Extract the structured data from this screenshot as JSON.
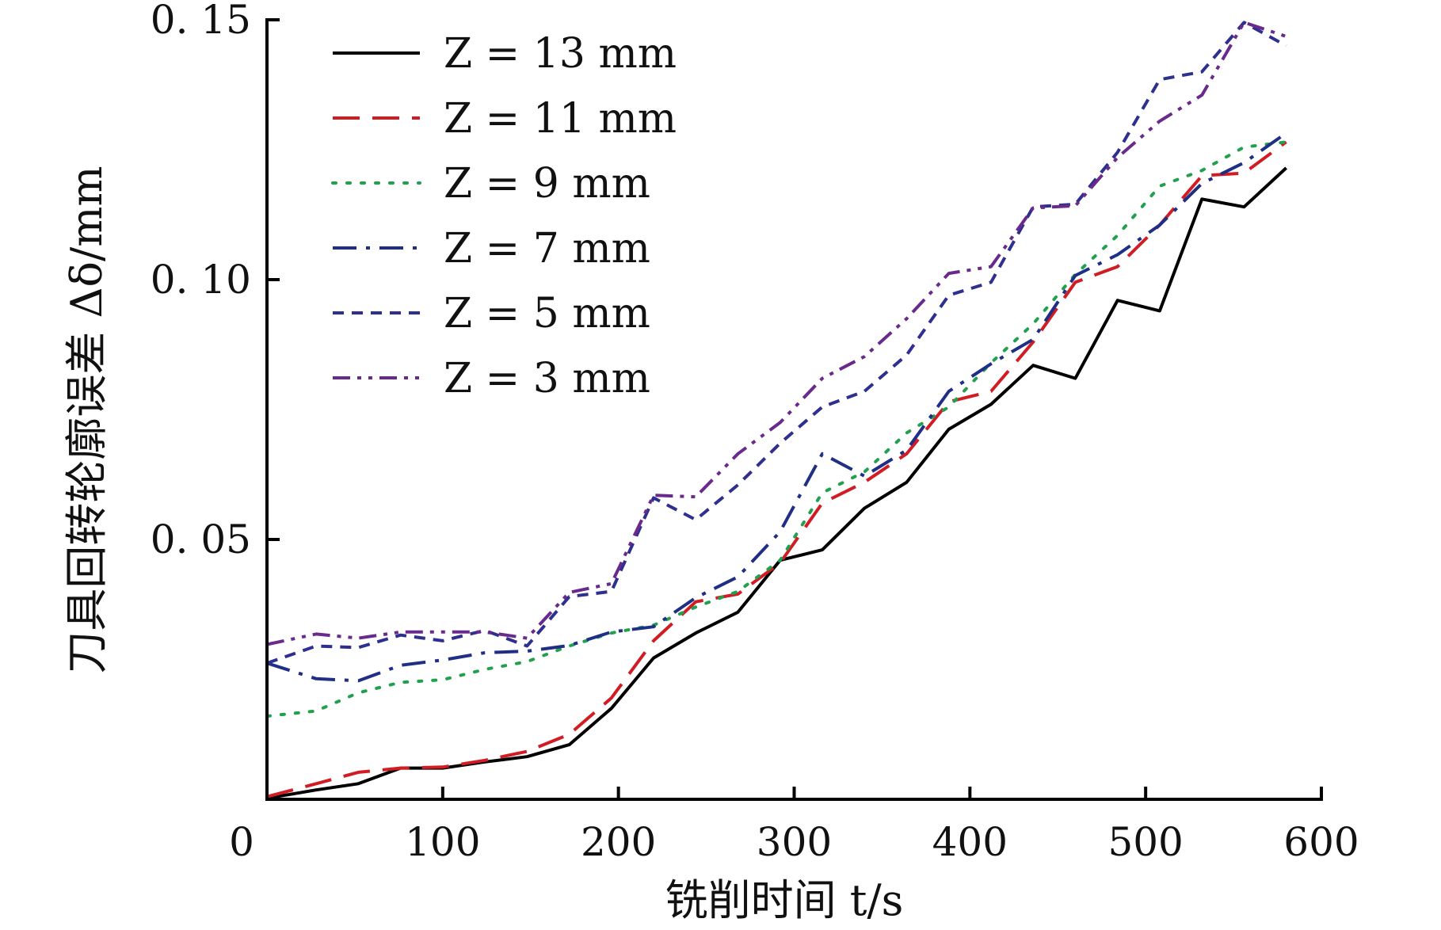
{
  "chart_data": {
    "type": "line",
    "title": "",
    "xlabel": "铣削时间 t/s",
    "ylabel": "刀具回转轮廓误差 Δδ/mm",
    "xlim": [
      0,
      600
    ],
    "ylim": [
      0,
      0.15
    ],
    "x_ticks": [
      0,
      100,
      200,
      300,
      400,
      500,
      600
    ],
    "x_tick_labels": [
      "0",
      "100",
      "200",
      "300",
      "400",
      "500",
      "600"
    ],
    "y_ticks": [
      0.05,
      0.1,
      0.15
    ],
    "y_tick_labels": [
      "0. 05",
      "0. 10",
      "0. 15"
    ],
    "grid": false,
    "legend_position": "top-left",
    "series": [
      {
        "name": "Z = 13 mm",
        "color": "#000000",
        "dash": "solid",
        "points": [
          [
            0,
            0.0002
          ],
          [
            28,
            0.0018
          ],
          [
            52,
            0.003
          ],
          [
            76,
            0.006
          ],
          [
            100,
            0.006
          ],
          [
            124,
            0.0072
          ],
          [
            148,
            0.0082
          ],
          [
            172,
            0.0105
          ],
          [
            196,
            0.0175
          ],
          [
            220,
            0.0272
          ],
          [
            244,
            0.032
          ],
          [
            268,
            0.036
          ],
          [
            292,
            0.046
          ],
          [
            316,
            0.048
          ],
          [
            340,
            0.056
          ],
          [
            364,
            0.061
          ],
          [
            388,
            0.0712
          ],
          [
            412,
            0.076
          ],
          [
            436,
            0.0835
          ],
          [
            460,
            0.081
          ],
          [
            484,
            0.096
          ],
          [
            508,
            0.094
          ],
          [
            532,
            0.1155
          ],
          [
            556,
            0.114
          ],
          [
            580,
            0.1215
          ]
        ]
      },
      {
        "name": "Z = 11 mm",
        "color": "#d21c24",
        "dash": "dashed",
        "points": [
          [
            0,
            0.0005
          ],
          [
            28,
            0.003
          ],
          [
            52,
            0.0052
          ],
          [
            76,
            0.006
          ],
          [
            100,
            0.0062
          ],
          [
            124,
            0.0075
          ],
          [
            148,
            0.0092
          ],
          [
            172,
            0.0125
          ],
          [
            196,
            0.0195
          ],
          [
            220,
            0.0305
          ],
          [
            244,
            0.038
          ],
          [
            268,
            0.0395
          ],
          [
            292,
            0.0455
          ],
          [
            316,
            0.057
          ],
          [
            340,
            0.061
          ],
          [
            364,
            0.0665
          ],
          [
            388,
            0.0765
          ],
          [
            412,
            0.0785
          ],
          [
            436,
            0.088
          ],
          [
            460,
            0.0995
          ],
          [
            484,
            0.1025
          ],
          [
            508,
            0.1105
          ],
          [
            532,
            0.12
          ],
          [
            556,
            0.1205
          ],
          [
            580,
            0.1265
          ]
        ]
      },
      {
        "name": "Z = 9 mm",
        "color": "#21a04d",
        "dash": "dotted",
        "points": [
          [
            0,
            0.016
          ],
          [
            28,
            0.017
          ],
          [
            52,
            0.0205
          ],
          [
            76,
            0.0225
          ],
          [
            100,
            0.023
          ],
          [
            124,
            0.025
          ],
          [
            148,
            0.0265
          ],
          [
            172,
            0.0295
          ],
          [
            196,
            0.032
          ],
          [
            220,
            0.0335
          ],
          [
            244,
            0.037
          ],
          [
            268,
            0.04
          ],
          [
            292,
            0.046
          ],
          [
            316,
            0.059
          ],
          [
            340,
            0.063
          ],
          [
            364,
            0.0705
          ],
          [
            388,
            0.0755
          ],
          [
            412,
            0.084
          ],
          [
            436,
            0.0915
          ],
          [
            460,
            0.101
          ],
          [
            484,
            0.1085
          ],
          [
            508,
            0.118
          ],
          [
            532,
            0.121
          ],
          [
            556,
            0.1255
          ],
          [
            580,
            0.1265
          ]
        ]
      },
      {
        "name": "Z = 7 mm",
        "color": "#1f2f86",
        "dash": "dashdot",
        "points": [
          [
            0,
            0.0262
          ],
          [
            28,
            0.0232
          ],
          [
            52,
            0.0228
          ],
          [
            76,
            0.0258
          ],
          [
            100,
            0.0268
          ],
          [
            124,
            0.0282
          ],
          [
            148,
            0.0285
          ],
          [
            172,
            0.0296
          ],
          [
            196,
            0.0322
          ],
          [
            220,
            0.0332
          ],
          [
            244,
            0.0388
          ],
          [
            268,
            0.0428
          ],
          [
            292,
            0.0515
          ],
          [
            316,
            0.0665
          ],
          [
            340,
            0.0622
          ],
          [
            364,
            0.0672
          ],
          [
            388,
            0.0785
          ],
          [
            412,
            0.0838
          ],
          [
            436,
            0.0885
          ],
          [
            460,
            0.1008
          ],
          [
            484,
            0.1048
          ],
          [
            508,
            0.1105
          ],
          [
            532,
            0.1185
          ],
          [
            556,
            0.1225
          ],
          [
            580,
            0.1282
          ]
        ]
      },
      {
        "name": "Z = 5 mm",
        "color": "#2e2f8e",
        "dash": "shortdash",
        "points": [
          [
            0,
            0.0262
          ],
          [
            28,
            0.0295
          ],
          [
            52,
            0.0292
          ],
          [
            76,
            0.0316
          ],
          [
            100,
            0.0305
          ],
          [
            124,
            0.0325
          ],
          [
            148,
            0.0295
          ],
          [
            172,
            0.039
          ],
          [
            196,
            0.04
          ],
          [
            220,
            0.058
          ],
          [
            244,
            0.0538
          ],
          [
            268,
            0.0605
          ],
          [
            292,
            0.0685
          ],
          [
            316,
            0.0755
          ],
          [
            340,
            0.0785
          ],
          [
            364,
            0.0855
          ],
          [
            388,
            0.097
          ],
          [
            412,
            0.0995
          ],
          [
            436,
            0.114
          ],
          [
            460,
            0.1145
          ],
          [
            484,
            0.1245
          ],
          [
            508,
            0.1385
          ],
          [
            532,
            0.14
          ],
          [
            556,
            0.1495
          ],
          [
            580,
            0.145
          ]
        ]
      },
      {
        "name": "Z = 3 mm",
        "color": "#6a2a8c",
        "dash": "dashdotdot",
        "points": [
          [
            0,
            0.0298
          ],
          [
            28,
            0.0318
          ],
          [
            52,
            0.031
          ],
          [
            76,
            0.0322
          ],
          [
            100,
            0.0322
          ],
          [
            124,
            0.0322
          ],
          [
            148,
            0.031
          ],
          [
            172,
            0.0398
          ],
          [
            196,
            0.0415
          ],
          [
            220,
            0.0585
          ],
          [
            244,
            0.0582
          ],
          [
            268,
            0.0665
          ],
          [
            292,
            0.0725
          ],
          [
            316,
            0.081
          ],
          [
            340,
            0.0852
          ],
          [
            364,
            0.0925
          ],
          [
            388,
            0.1012
          ],
          [
            412,
            0.1025
          ],
          [
            436,
            0.1138
          ],
          [
            460,
            0.1142
          ],
          [
            484,
            0.1235
          ],
          [
            508,
            0.1305
          ],
          [
            532,
            0.1355
          ],
          [
            556,
            0.1495
          ],
          [
            580,
            0.1468
          ]
        ]
      }
    ]
  }
}
